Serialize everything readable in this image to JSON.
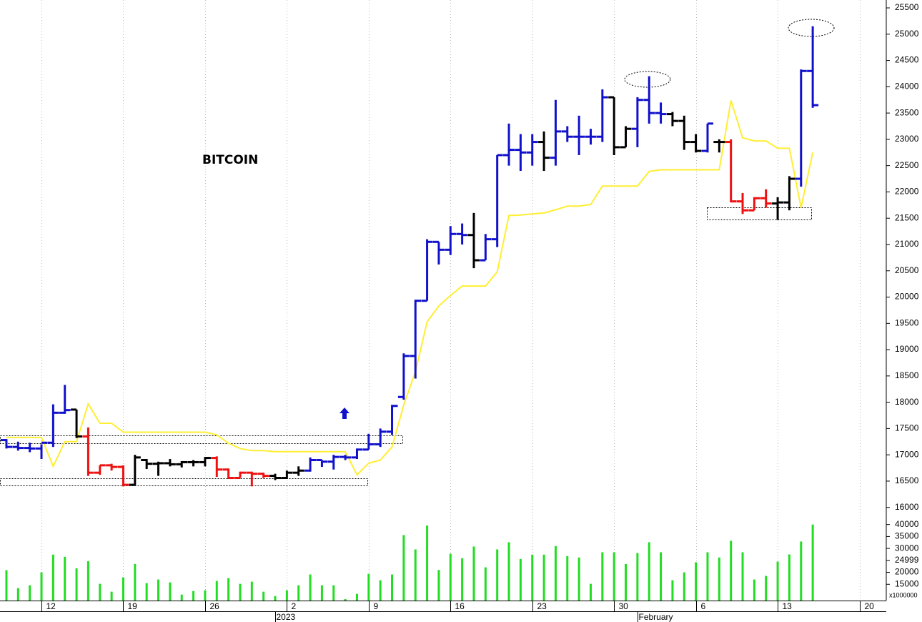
{
  "chart_data": {
    "type": "ohlc",
    "title": "BITCOIN",
    "categories": [
      null,
      null,
      null,
      "12",
      null,
      null,
      null,
      null,
      null,
      null,
      "19",
      null,
      null,
      null,
      null,
      null,
      null,
      "26",
      null,
      null,
      null,
      null,
      null,
      null,
      "2",
      null,
      null,
      null,
      null,
      null,
      null,
      "9",
      null,
      null,
      null,
      null,
      null,
      null,
      "16",
      null,
      null,
      null,
      null,
      null,
      null,
      "23",
      null,
      null,
      null,
      null,
      null,
      null,
      "30",
      null,
      null,
      null,
      null,
      null,
      null,
      "6",
      null,
      null,
      null,
      null,
      null,
      null,
      "13",
      null,
      null,
      null,
      null,
      null,
      null,
      "20",
      null
    ],
    "period_labels": [
      null,
      null,
      null,
      null,
      null,
      null,
      null,
      null,
      null,
      null,
      null,
      null,
      null,
      null,
      null,
      null,
      null,
      null,
      null,
      null,
      null,
      null,
      null,
      "2023",
      null,
      null,
      null,
      null,
      null,
      null,
      null,
      null,
      null,
      null,
      null,
      null,
      null,
      null,
      null,
      null,
      null,
      null,
      null,
      null,
      null,
      null,
      null,
      null,
      null,
      null,
      null,
      null,
      null,
      null,
      "February",
      null,
      null,
      null,
      null,
      null,
      null,
      null,
      null,
      null,
      null,
      null,
      null,
      null,
      null,
      null,
      null,
      null,
      null,
      null,
      null
    ],
    "open": [
      17280,
      17150,
      17130,
      17120,
      17230,
      17800,
      17860,
      17350,
      16660,
      16800,
      16770,
      16430,
      16900,
      16830,
      16840,
      16820,
      16860,
      16860,
      16940,
      16720,
      16560,
      16660,
      16640,
      16600,
      16560,
      16660,
      16700,
      16900,
      16870,
      16960,
      16950,
      17100,
      17200,
      17440,
      18100,
      18880,
      19930,
      21050,
      20900,
      21200,
      21180,
      20700,
      21100,
      22700,
      22800,
      22750,
      22950,
      22650,
      23150,
      23050,
      23050,
      23050,
      23800,
      22850,
      23200,
      23750,
      23500,
      23480,
      23350,
      22950,
      22780,
      22950,
      22950,
      21820,
      21650,
      21880,
      21780,
      21800,
      22250,
      24300,
      null,
      null,
      null,
      null,
      null
    ],
    "high": [
      17300,
      17250,
      17230,
      17200,
      17960,
      18330,
      17860,
      17520,
      16800,
      16830,
      16800,
      17000,
      16920,
      16870,
      16920,
      16880,
      16900,
      16960,
      16970,
      16740,
      16680,
      16680,
      16660,
      16640,
      16700,
      16780,
      16950,
      16900,
      17000,
      17000,
      17120,
      17400,
      17500,
      17950,
      18930,
      19950,
      21100,
      21050,
      21350,
      21400,
      21600,
      21200,
      22700,
      23300,
      23100,
      23100,
      23150,
      23750,
      23250,
      23450,
      23200,
      23950,
      23800,
      23250,
      23800,
      24200,
      23700,
      23520,
      23450,
      23100,
      23300,
      23000,
      23000,
      21980,
      21900,
      22050,
      21900,
      22300,
      24330,
      25150,
      null,
      null,
      null,
      null,
      null
    ],
    "low": [
      17120,
      17080,
      17050,
      16920,
      17150,
      17780,
      17320,
      16600,
      16620,
      16700,
      16400,
      16420,
      16730,
      16600,
      16780,
      16760,
      16780,
      16780,
      16580,
      16540,
      16560,
      16400,
      16560,
      16520,
      16540,
      16600,
      16680,
      16770,
      16720,
      16900,
      16920,
      17100,
      17150,
      17380,
      18050,
      18450,
      19930,
      20620,
      20800,
      21000,
      20550,
      20700,
      20950,
      22500,
      22400,
      22500,
      22400,
      22500,
      22950,
      22700,
      22900,
      22950,
      22700,
      22850,
      22850,
      23300,
      23300,
      23250,
      22800,
      22750,
      22750,
      22750,
      21800,
      21580,
      21650,
      21700,
      21470,
      21650,
      22100,
      23600,
      null,
      null,
      null,
      null,
      null
    ],
    "close": [
      17150,
      17130,
      17120,
      17230,
      17800,
      17850,
      17350,
      16660,
      16800,
      16770,
      16430,
      16950,
      16830,
      16840,
      16820,
      16860,
      16860,
      16940,
      16720,
      16560,
      16660,
      16640,
      16600,
      16560,
      16660,
      16700,
      16900,
      16870,
      16960,
      16950,
      17100,
      17200,
      17440,
      17930,
      18880,
      19930,
      21050,
      20900,
      21200,
      21180,
      20700,
      21100,
      22700,
      22800,
      22750,
      22950,
      22650,
      23150,
      23050,
      23050,
      23050,
      23800,
      22850,
      23200,
      23750,
      23500,
      23480,
      23350,
      22950,
      22780,
      23300,
      22950,
      21820,
      21650,
      21880,
      21780,
      21800,
      22250,
      24300,
      23650,
      null,
      null,
      null,
      null,
      null
    ],
    "colors": [
      "#1111cc",
      "#1111cc",
      "#1111cc",
      "#1111cc",
      "#1111cc",
      "#1111cc",
      "#000000",
      "#ee1111",
      "#ee1111",
      "#ee1111",
      "#ee1111",
      "#000000",
      "#000000",
      "#000000",
      "#000000",
      "#000000",
      "#000000",
      "#000000",
      "#ee1111",
      "#ee1111",
      "#ee1111",
      "#ee1111",
      "#ee1111",
      "#000000",
      "#000000",
      "#000000",
      "#1111cc",
      "#1111cc",
      "#1111cc",
      "#1111cc",
      "#1111cc",
      "#1111cc",
      "#1111cc",
      "#1111cc",
      "#1111cc",
      "#1111cc",
      "#1111cc",
      "#1111cc",
      "#1111cc",
      "#1111cc",
      "#000000",
      "#1111cc",
      "#1111cc",
      "#1111cc",
      "#1111cc",
      "#1111cc",
      "#000000",
      "#1111cc",
      "#1111cc",
      "#1111cc",
      "#1111cc",
      "#1111cc",
      "#000000",
      "#000000",
      "#1111cc",
      "#1111cc",
      "#1111cc",
      "#000000",
      "#000000",
      "#000000",
      "#1111cc",
      "#000000",
      "#ee1111",
      "#ee1111",
      "#ee1111",
      "#ee1111",
      "#000000",
      "#000000",
      "#1111cc",
      "#1111cc",
      null,
      null,
      null,
      null,
      null
    ],
    "overlay": {
      "color": "#ffee33",
      "values": [
        17330,
        17330,
        17330,
        17330,
        16780,
        17250,
        17250,
        17970,
        17600,
        17600,
        17430,
        17430,
        17430,
        17430,
        17430,
        17430,
        17430,
        17430,
        17380,
        17220,
        17120,
        17080,
        17080,
        17060,
        17060,
        17060,
        17060,
        17060,
        17060,
        17060,
        16620,
        16840,
        16900,
        17150,
        17950,
        18580,
        19530,
        19830,
        20030,
        20210,
        20210,
        20210,
        20480,
        21550,
        21560,
        21580,
        21600,
        21660,
        21730,
        21730,
        21760,
        22110,
        22110,
        22110,
        22110,
        22390,
        22420,
        22420,
        22420,
        22420,
        22420,
        22420,
        23740,
        23030,
        22970,
        22970,
        22830,
        22830,
        21700,
        22750,
        null,
        null,
        null,
        null,
        null
      ]
    },
    "ylim": [
      15860,
      25650
    ],
    "yticks": [
      16000,
      16500,
      17000,
      17500,
      18000,
      18500,
      19000,
      19500,
      20000,
      20500,
      21000,
      21500,
      22000,
      22500,
      23000,
      23500,
      24000,
      24500,
      25000,
      25500
    ],
    "grid": true,
    "volume": {
      "type": "bar",
      "color": "#22dd22",
      "unit_label": "x1000000",
      "values": [
        20900,
        13400,
        14600,
        20000,
        27400,
        26500,
        21700,
        24700,
        15200,
        11900,
        17900,
        23500,
        15500,
        17000,
        15800,
        10700,
        12200,
        12500,
        16400,
        17600,
        15200,
        16100,
        11900,
        10100,
        12500,
        14600,
        19100,
        14600,
        14600,
        8800,
        11000,
        19400,
        16700,
        19100,
        35600,
        29600,
        39600,
        21000,
        27800,
        25900,
        30800,
        22100,
        29600,
        32600,
        25600,
        27400,
        27400,
        31000,
        26800,
        26200,
        15200,
        28400,
        28400,
        23500,
        28100,
        32600,
        28400,
        16700,
        20000,
        24200,
        28400,
        26200,
        33200,
        28400,
        17000,
        18500,
        24500,
        27500,
        32900,
        40000,
        null,
        null,
        null,
        null,
        null
      ],
      "ylim": [
        8200,
        42000
      ],
      "yticks": [
        15000,
        20000,
        24999,
        30000,
        35000,
        40000
      ]
    }
  }
}
